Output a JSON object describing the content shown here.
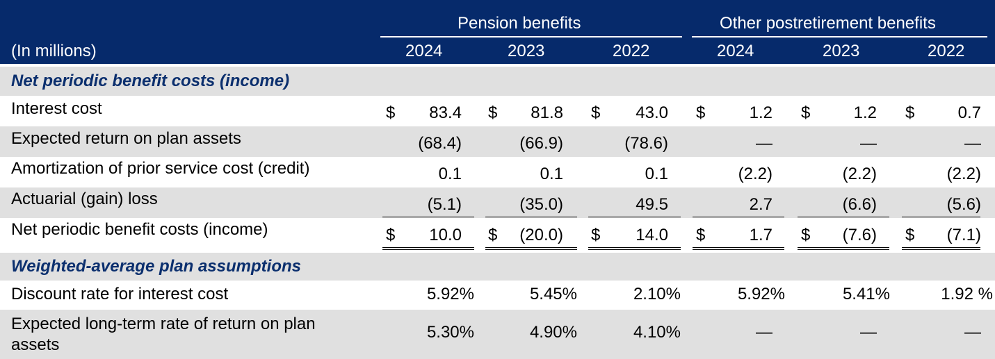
{
  "header": {
    "units_label": "(In millions)",
    "groups": [
      "Pension benefits",
      "Other postretirement benefits"
    ],
    "years": [
      "2024",
      "2023",
      "2022",
      "2024",
      "2023",
      "2022"
    ]
  },
  "currency_symbol": "$",
  "sections": [
    {
      "title": "Net periodic benefit costs (income)",
      "rows": [
        {
          "label": "Interest cost",
          "values": [
            "83.4",
            "81.8",
            "43.0",
            "1.2",
            "1.2",
            "0.7"
          ]
        },
        {
          "label": "Expected return on plan assets",
          "values": [
            "(68.4)",
            "(66.9)",
            "(78.6)",
            "—",
            "—",
            "—"
          ]
        },
        {
          "label": "Amortization of prior service cost (credit)",
          "values": [
            "0.1",
            "0.1",
            "0.1",
            "(2.2)",
            "(2.2)",
            "(2.2)"
          ]
        },
        {
          "label": "Actuarial (gain) loss",
          "values": [
            "(5.1)",
            "(35.0)",
            "49.5",
            "2.7",
            "(6.6)",
            "(5.6)"
          ]
        },
        {
          "label": "Net periodic benefit costs (income)",
          "values": [
            "10.0",
            "(20.0)",
            "14.0",
            "1.7",
            "(7.6)",
            "(7.1)"
          ]
        }
      ]
    },
    {
      "title": "Weighted-average plan assumptions",
      "rows": [
        {
          "label": "Discount rate for interest cost",
          "values": [
            "5.92%",
            "5.45%",
            "2.10%",
            "5.92%",
            "5.41%",
            "1.92 %"
          ]
        },
        {
          "label": "Expected long-term rate of return on plan assets",
          "label_lines": [
            "Expected long-term rate of return on plan",
            "assets"
          ],
          "values": [
            "5.30%",
            "4.90%",
            "4.10%",
            "—",
            "—",
            "—"
          ]
        }
      ]
    }
  ]
}
